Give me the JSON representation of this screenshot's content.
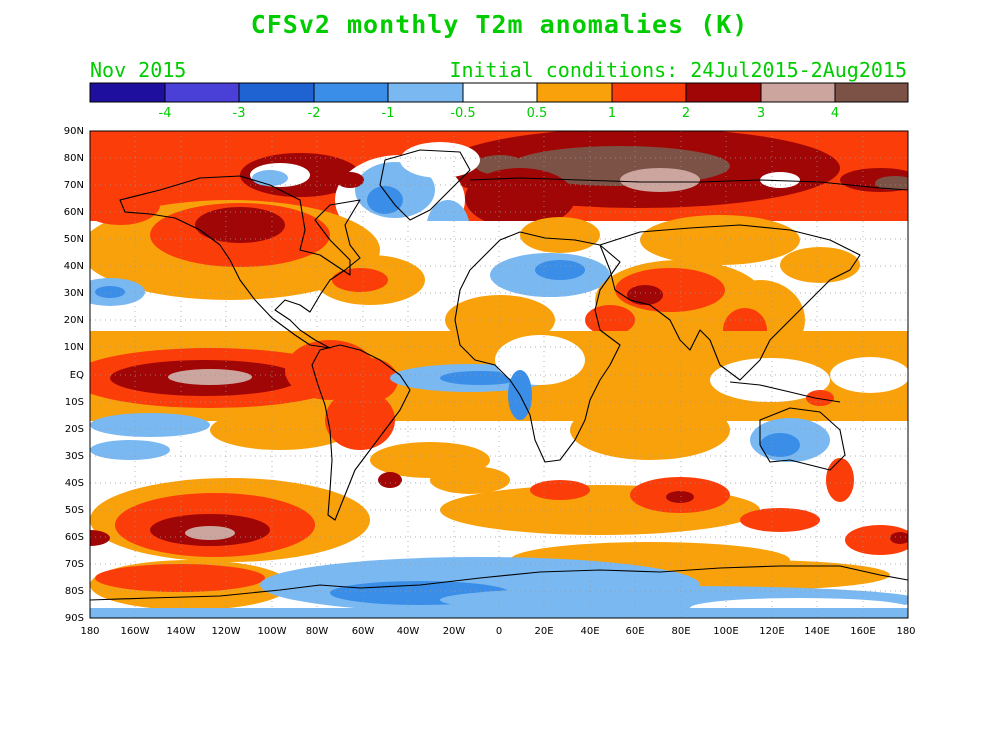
{
  "title": "CFSv2 monthly T2m anomalies (K)",
  "subtitle_left": "Nov 2015",
  "subtitle_right": "Initial conditions: 24Jul2015-2Aug2015",
  "colorbar": {
    "colors": [
      "#1f0f9e",
      "#4a3fd6",
      "#1f62d2",
      "#3a8ee8",
      "#7ab8f2",
      "#ffffff",
      "#f9a10a",
      "#fb3d0a",
      "#a10606",
      "#cba59e",
      "#7b5245"
    ],
    "labels": [
      "-4",
      "-3",
      "-2",
      "-1",
      "-0.5",
      "0.5",
      "1",
      "2",
      "3",
      "4"
    ]
  },
  "axes": {
    "lat_labels": [
      "90N",
      "80N",
      "70N",
      "60N",
      "50N",
      "40N",
      "30N",
      "20N",
      "10N",
      "EQ",
      "10S",
      "20S",
      "30S",
      "40S",
      "50S",
      "60S",
      "70S",
      "80S",
      "90S"
    ],
    "lon_labels": [
      "180",
      "160W",
      "140W",
      "120W",
      "100W",
      "80W",
      "60W",
      "40W",
      "20W",
      "0",
      "20E",
      "40E",
      "60E",
      "80E",
      "100E",
      "120E",
      "140E",
      "160E",
      "180"
    ]
  }
}
